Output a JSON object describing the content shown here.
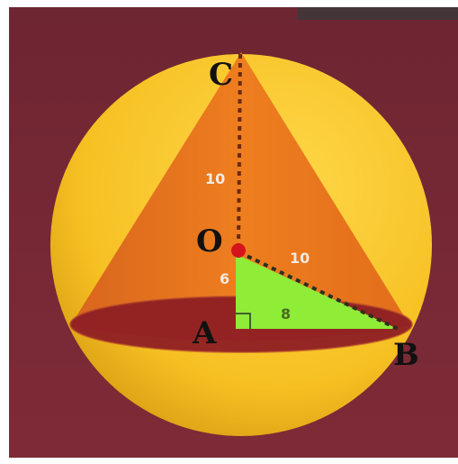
{
  "diagram": {
    "points": {
      "C": "C",
      "O": "O",
      "A": "A",
      "B": "B"
    },
    "measures": {
      "co": "10",
      "ob": "10",
      "oa": "6",
      "ab": "8"
    },
    "colors": {
      "background": "#7b2a35",
      "sphere": "#f7c125",
      "cone": "#e8741d",
      "base_disc": "#8e1f24",
      "triangle": "#8fec37",
      "center_dot": "#d4141a"
    }
  }
}
